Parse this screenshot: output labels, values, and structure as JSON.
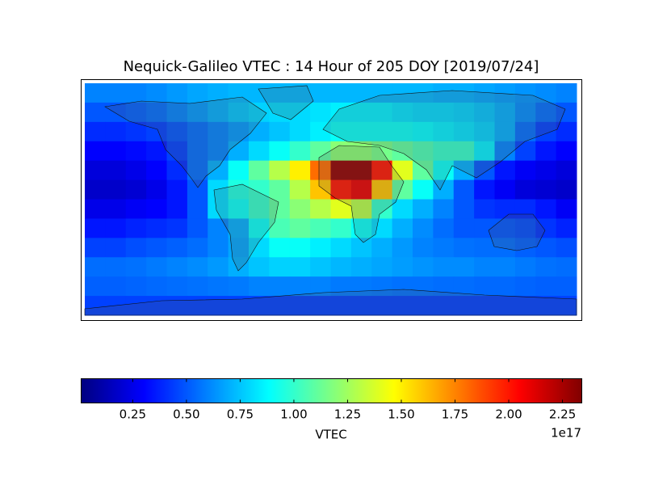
{
  "chart_data": {
    "type": "heatmap",
    "title": "Nequick-Galileo VTEC : 14 Hour of 205 DOY [2019/07/24]",
    "colormap": "jet",
    "values": [
      [
        0.6,
        0.6,
        0.6,
        0.62,
        0.65,
        0.68,
        0.7,
        0.72,
        0.72,
        0.72,
        0.72,
        0.72,
        0.72,
        0.72,
        0.72,
        0.72,
        0.72,
        0.7,
        0.7,
        0.68,
        0.66,
        0.64,
        0.62,
        0.6
      ],
      [
        0.5,
        0.5,
        0.52,
        0.55,
        0.6,
        0.65,
        0.7,
        0.75,
        0.78,
        0.8,
        0.8,
        0.82,
        0.85,
        0.85,
        0.85,
        0.82,
        0.8,
        0.8,
        0.78,
        0.75,
        0.7,
        0.62,
        0.55,
        0.5
      ],
      [
        0.4,
        0.4,
        0.42,
        0.45,
        0.5,
        0.55,
        0.6,
        0.65,
        0.7,
        0.75,
        0.8,
        0.85,
        0.9,
        0.9,
        0.9,
        0.9,
        0.88,
        0.85,
        0.82,
        0.78,
        0.7,
        0.55,
        0.45,
        0.4
      ],
      [
        0.3,
        0.3,
        0.32,
        0.35,
        0.45,
        0.55,
        0.6,
        0.7,
        0.8,
        0.9,
        1.0,
        1.1,
        1.2,
        1.2,
        1.15,
        1.1,
        1.05,
        1.0,
        1.0,
        0.85,
        0.6,
        0.45,
        0.35,
        0.3
      ],
      [
        0.22,
        0.22,
        0.25,
        0.3,
        0.4,
        0.55,
        0.7,
        0.9,
        1.1,
        1.3,
        1.5,
        1.8,
        2.3,
        2.3,
        2.0,
        1.4,
        1.1,
        0.9,
        0.7,
        0.5,
        0.35,
        0.28,
        0.25,
        0.22
      ],
      [
        0.18,
        0.18,
        0.2,
        0.25,
        0.35,
        0.5,
        0.8,
        0.95,
        1.0,
        1.1,
        1.3,
        1.6,
        2.0,
        2.1,
        1.6,
        1.1,
        0.9,
        0.7,
        0.5,
        0.35,
        0.28,
        0.22,
        0.2,
        0.18
      ],
      [
        0.25,
        0.25,
        0.28,
        0.3,
        0.35,
        0.5,
        0.8,
        0.9,
        1.0,
        1.1,
        1.2,
        1.3,
        1.4,
        1.3,
        1.0,
        0.8,
        0.7,
        0.6,
        0.5,
        0.42,
        0.4,
        0.4,
        0.35,
        0.28
      ],
      [
        0.35,
        0.35,
        0.38,
        0.4,
        0.42,
        0.5,
        0.6,
        0.7,
        0.9,
        1.05,
        1.1,
        1.05,
        1.0,
        0.9,
        0.8,
        0.7,
        0.62,
        0.55,
        0.5,
        0.5,
        0.5,
        0.48,
        0.42,
        0.38
      ],
      [
        0.45,
        0.45,
        0.48,
        0.5,
        0.52,
        0.55,
        0.6,
        0.68,
        0.8,
        0.9,
        0.9,
        0.85,
        0.8,
        0.75,
        0.7,
        0.65,
        0.6,
        0.58,
        0.56,
        0.55,
        0.55,
        0.52,
        0.5,
        0.48
      ],
      [
        0.55,
        0.55,
        0.56,
        0.58,
        0.6,
        0.62,
        0.65,
        0.7,
        0.75,
        0.78,
        0.78,
        0.75,
        0.72,
        0.7,
        0.68,
        0.66,
        0.64,
        0.62,
        0.62,
        0.6,
        0.6,
        0.58,
        0.56,
        0.55
      ],
      [
        0.52,
        0.52,
        0.53,
        0.54,
        0.55,
        0.56,
        0.57,
        0.58,
        0.6,
        0.6,
        0.6,
        0.6,
        0.58,
        0.58,
        0.57,
        0.56,
        0.56,
        0.55,
        0.55,
        0.54,
        0.54,
        0.53,
        0.52,
        0.52
      ],
      [
        0.45,
        0.45,
        0.45,
        0.45,
        0.45,
        0.45,
        0.45,
        0.45,
        0.45,
        0.45,
        0.45,
        0.45,
        0.45,
        0.45,
        0.45,
        0.45,
        0.45,
        0.45,
        0.45,
        0.45,
        0.45,
        0.45,
        0.45,
        0.45
      ]
    ],
    "colorbar": {
      "label": "VTEC",
      "offset_label": "1e17",
      "xlim": [
        0.01,
        2.34
      ],
      "xticks": [
        0.25,
        {
          "value": 0.5,
          "label": "0.50"
        },
        0.75,
        {
          "value": 1.0,
          "label": "1.00"
        },
        1.25,
        {
          "value": 1.5,
          "label": "1.50"
        },
        1.75,
        {
          "value": 2.0,
          "label": "2.00"
        },
        2.25
      ]
    }
  }
}
